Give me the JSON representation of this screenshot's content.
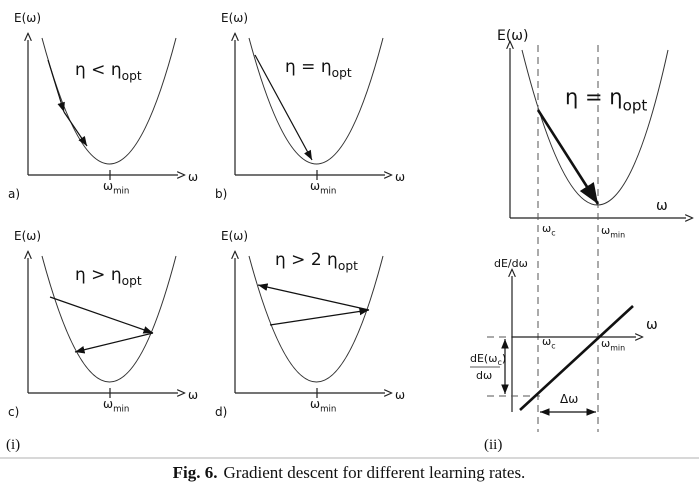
{
  "panels": [
    {
      "label": "a)",
      "y_axis": "E(ω)",
      "x_axis": "ω",
      "x_mark": {
        "base": "ω",
        "sub": "min"
      },
      "eta": {
        "text": "η < η",
        "sub": "opt"
      }
    },
    {
      "label": "b)",
      "y_axis": "E(ω)",
      "x_axis": "ω",
      "x_mark": {
        "base": "ω",
        "sub": "min"
      },
      "eta": {
        "text": "η = η",
        "sub": "opt"
      }
    },
    {
      "label": "c)",
      "y_axis": "E(ω)",
      "x_axis": "ω",
      "x_mark": {
        "base": "ω",
        "sub": "min"
      },
      "eta": {
        "text": "η > η",
        "sub": "opt"
      }
    },
    {
      "label": "d)",
      "y_axis": "E(ω)",
      "x_axis": "ω",
      "x_mark": {
        "base": "ω",
        "sub": "min"
      },
      "eta": {
        "text": "η > 2 η",
        "sub": "opt"
      }
    }
  ],
  "group_labels": [
    "(i)",
    "(ii)"
  ],
  "right": {
    "top": {
      "y_axis": "E(ω)",
      "x_axis": "ω",
      "eta": {
        "text": "η = η",
        "sub": "opt"
      },
      "x_marks": [
        {
          "base": "ω",
          "sub": "c"
        },
        {
          "base": "ω",
          "sub": "min"
        }
      ]
    },
    "bottom": {
      "y_axis": "dE/dω",
      "x_axis": "ω",
      "x_marks": [
        {
          "base": "ω",
          "sub": "c"
        },
        {
          "base": "ω",
          "sub": "min"
        }
      ],
      "derivative": {
        "num_base": "dE(ω",
        "num_sub": "c",
        "num_tail": ")",
        "den": "dω"
      },
      "delta": "Δω"
    }
  },
  "caption": {
    "label": "Fig. 6.",
    "text": "Gradient descent for different learning rates."
  }
}
